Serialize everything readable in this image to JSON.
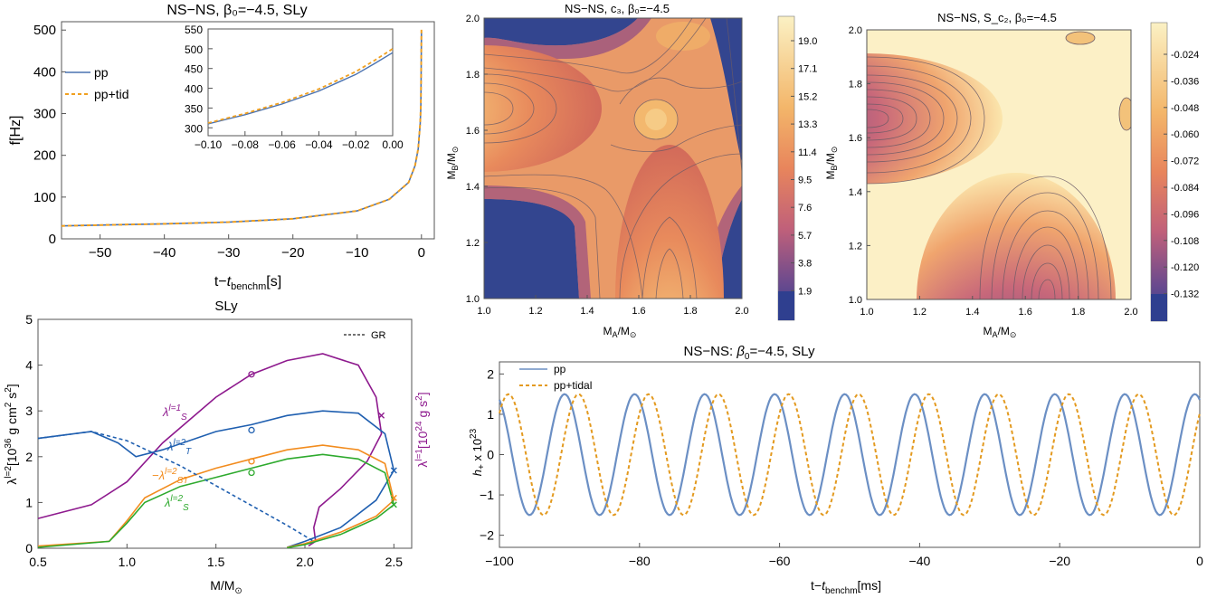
{
  "chart_data": [
    {
      "id": "freq",
      "type": "line",
      "title": "NS−NS, β₀=−4.5, SLy",
      "xlabel": "t−t_benchm[s]",
      "ylabel": "f[Hz]",
      "xlim": [
        -56,
        2
      ],
      "ylim": [
        0,
        520
      ],
      "xticks": [
        -50,
        -40,
        -30,
        -20,
        -10,
        0
      ],
      "xtick_labels": [
        "−50",
        "−40",
        "−30",
        "−20",
        "−10",
        "0"
      ],
      "yticks": [
        0,
        100,
        200,
        300,
        400,
        500
      ],
      "ytick_labels": [
        "0",
        "100",
        "200",
        "300",
        "400",
        "500"
      ],
      "legend": [
        "pp",
        "pp+tid"
      ],
      "series": [
        {
          "name": "pp",
          "x": [
            -56,
            -50,
            -40,
            -30,
            -20,
            -10,
            -5,
            -2,
            -1,
            -0.5,
            -0.2,
            -0.1,
            -0.05,
            0
          ],
          "y": [
            31,
            33,
            36,
            40,
            48,
            67,
            95,
            135,
            175,
            215,
            275,
            315,
            380,
            495
          ]
        },
        {
          "name": "pp+tid",
          "x": [
            -56,
            -50,
            -40,
            -30,
            -20,
            -10,
            -5,
            -2,
            -1,
            -0.5,
            -0.2,
            -0.1,
            -0.05,
            0
          ],
          "y": [
            31,
            33,
            36,
            40,
            48,
            67,
            95,
            135,
            175,
            216,
            277,
            317,
            385,
            505
          ]
        }
      ],
      "inset": {
        "xlim": [
          -0.1,
          0.0
        ],
        "ylim": [
          280,
          550
        ],
        "xticks": [
          -0.1,
          -0.08,
          -0.06,
          -0.04,
          -0.02,
          0.0
        ],
        "xtick_labels": [
          "−0.10",
          "−0.08",
          "−0.06",
          "−0.04",
          "−0.02",
          "0.00"
        ],
        "yticks": [
          300,
          350,
          400,
          450,
          500,
          550
        ],
        "ytick_labels": [
          "300",
          "350",
          "400",
          "450",
          "500",
          "550"
        ],
        "series": [
          {
            "name": "pp",
            "x": [
              -0.1,
              -0.08,
              -0.06,
              -0.04,
              -0.02,
              -0.01,
              0.0
            ],
            "y": [
              310,
              333,
              360,
              393,
              435,
              462,
              490
            ]
          },
          {
            "name": "pp+tid",
            "x": [
              -0.1,
              -0.08,
              -0.06,
              -0.04,
              -0.02,
              -0.01,
              0.0
            ],
            "y": [
              312,
              336,
              364,
              398,
              442,
              470,
              500
            ]
          }
        ]
      }
    },
    {
      "id": "contour_c3",
      "type": "heatmap",
      "title": "NS−NS, c₃, β₀=−4.5",
      "xlabel": "M_A/M_⊙",
      "ylabel": "M_B/M_⊙",
      "xlim": [
        1.0,
        2.0
      ],
      "ylim": [
        1.0,
        2.0
      ],
      "xtick_labels": [
        "1.0",
        "1.2",
        "1.4",
        "1.6",
        "1.8",
        "2.0"
      ],
      "ytick_labels": [
        "1.0",
        "1.2",
        "1.4",
        "1.6",
        "1.8",
        "2.0"
      ],
      "colorbar_labels": [
        "19.0",
        "17.1",
        "15.2",
        "13.3",
        "11.4",
        "9.5",
        "7.6",
        "5.7",
        "3.8",
        "1.9"
      ]
    },
    {
      "id": "contour_sc2",
      "type": "heatmap",
      "title": "NS−NS, S_c₂, β₀=−4.5",
      "xlabel": "M_A/M_⊙",
      "ylabel": "M_B/M_⊙",
      "xlim": [
        1.0,
        2.0
      ],
      "ylim": [
        1.0,
        2.0
      ],
      "xtick_labels": [
        "1.0",
        "1.2",
        "1.4",
        "1.6",
        "1.8",
        "2.0"
      ],
      "ytick_labels": [
        "1.0",
        "1.2",
        "1.4",
        "1.6",
        "1.8",
        "2.0"
      ],
      "colorbar_labels": [
        "-0.024",
        "-0.036",
        "-0.048",
        "-0.060",
        "-0.072",
        "-0.084",
        "-0.096",
        "-0.108",
        "-0.120",
        "-0.132"
      ]
    },
    {
      "id": "love",
      "type": "line",
      "title": "SLy",
      "xlabel": "M/M_⊙",
      "ylabel_left": "λ^{l=2}[10^36 g cm^2 s^2]",
      "ylabel_right": "λ^{l=1}[10^24 g s^2]",
      "xlim": [
        0.5,
        2.6
      ],
      "ylim": [
        0,
        5
      ],
      "xticks": [
        0.5,
        1.0,
        1.5,
        2.0,
        2.5
      ],
      "xtick_labels": [
        "0.5",
        "1.0",
        "1.5",
        "2.0",
        "2.5"
      ],
      "yticks": [
        0,
        1,
        2,
        3,
        4,
        5
      ],
      "ytick_labels": [
        "0",
        "1",
        "2",
        "3",
        "4",
        "5"
      ],
      "legend": [
        "GR"
      ],
      "series": [
        {
          "name": "λ^{l=1}_S",
          "color": "#8e1a8e",
          "x": [
            0.5,
            0.8,
            1.0,
            1.2,
            1.5,
            1.7,
            1.9,
            2.1,
            2.3,
            2.4,
            2.43,
            2.35,
            2.2,
            2.08,
            2.05,
            2.06,
            2.02
          ],
          "y": [
            0.65,
            0.95,
            1.45,
            2.3,
            3.3,
            3.8,
            4.1,
            4.25,
            4.0,
            3.3,
            2.5,
            1.9,
            1.3,
            0.9,
            0.45,
            0.15,
            0.05
          ]
        },
        {
          "name": "λ^{l=2}_T",
          "color": "#1f5fb0",
          "x": [
            0.5,
            0.8,
            0.95,
            1.05,
            1.2,
            1.5,
            1.7,
            1.9,
            2.1,
            2.3,
            2.45,
            2.5,
            2.4,
            2.2,
            2.0,
            1.9
          ],
          "y": [
            2.4,
            2.55,
            2.3,
            2.0,
            2.15,
            2.55,
            2.7,
            2.9,
            3.0,
            2.95,
            2.5,
            1.7,
            1.05,
            0.45,
            0.15,
            0.02
          ]
        },
        {
          "name": "−λ^{l=2}_ST",
          "color": "#f28c1e",
          "x": [
            0.5,
            0.9,
            1.0,
            1.1,
            1.3,
            1.5,
            1.7,
            1.9,
            2.1,
            2.3,
            2.45,
            2.5,
            2.4,
            2.2,
            2.0,
            1.9
          ],
          "y": [
            0.05,
            0.15,
            0.6,
            1.1,
            1.5,
            1.75,
            1.95,
            2.15,
            2.25,
            2.15,
            1.85,
            1.05,
            0.7,
            0.35,
            0.1,
            0.02
          ]
        },
        {
          "name": "λ^{l=2}_S",
          "color": "#2eaa2e",
          "x": [
            0.5,
            0.9,
            1.0,
            1.1,
            1.3,
            1.5,
            1.7,
            1.9,
            2.1,
            2.3,
            2.45,
            2.5,
            2.4,
            2.2,
            2.0,
            1.9
          ],
          "y": [
            0.02,
            0.15,
            0.55,
            1.0,
            1.35,
            1.55,
            1.75,
            1.95,
            2.05,
            1.95,
            1.65,
            0.95,
            0.65,
            0.3,
            0.08,
            0.01
          ]
        },
        {
          "name": "GR",
          "color": "#1f5fb0",
          "dash": true,
          "x": [
            0.5,
            0.8,
            1.0,
            1.3,
            1.6,
            1.9,
            2.05
          ],
          "y": [
            2.4,
            2.55,
            2.35,
            1.8,
            1.15,
            0.5,
            0.15
          ]
        }
      ]
    },
    {
      "id": "waveform",
      "type": "line",
      "title": "NS−NS: β₀=−4.5, SLy",
      "xlabel": "t−t_benchm[ms]",
      "ylabel": "h₊ x 10²³",
      "xlim": [
        -100,
        0
      ],
      "ylim": [
        -2.3,
        2.3
      ],
      "xticks": [
        -100,
        -80,
        -60,
        -40,
        -20,
        0
      ],
      "xtick_labels": [
        "−100",
        "−80",
        "−60",
        "−40",
        "−20",
        "0"
      ],
      "yticks": [
        -2,
        -1,
        0,
        1,
        2
      ],
      "ytick_labels": [
        "−2",
        "−1",
        "0",
        "1",
        "2"
      ],
      "legend": [
        "pp",
        "pp+tidal"
      ],
      "series": [
        {
          "name": "pp",
          "amplitude_pp": 1.5,
          "period_ms": 10.0,
          "phase_ms": 0.7
        },
        {
          "name": "pp+tidal",
          "amplitude": 1.5,
          "period_ms": 10.0,
          "phase_ms": -1.3
        }
      ]
    }
  ]
}
